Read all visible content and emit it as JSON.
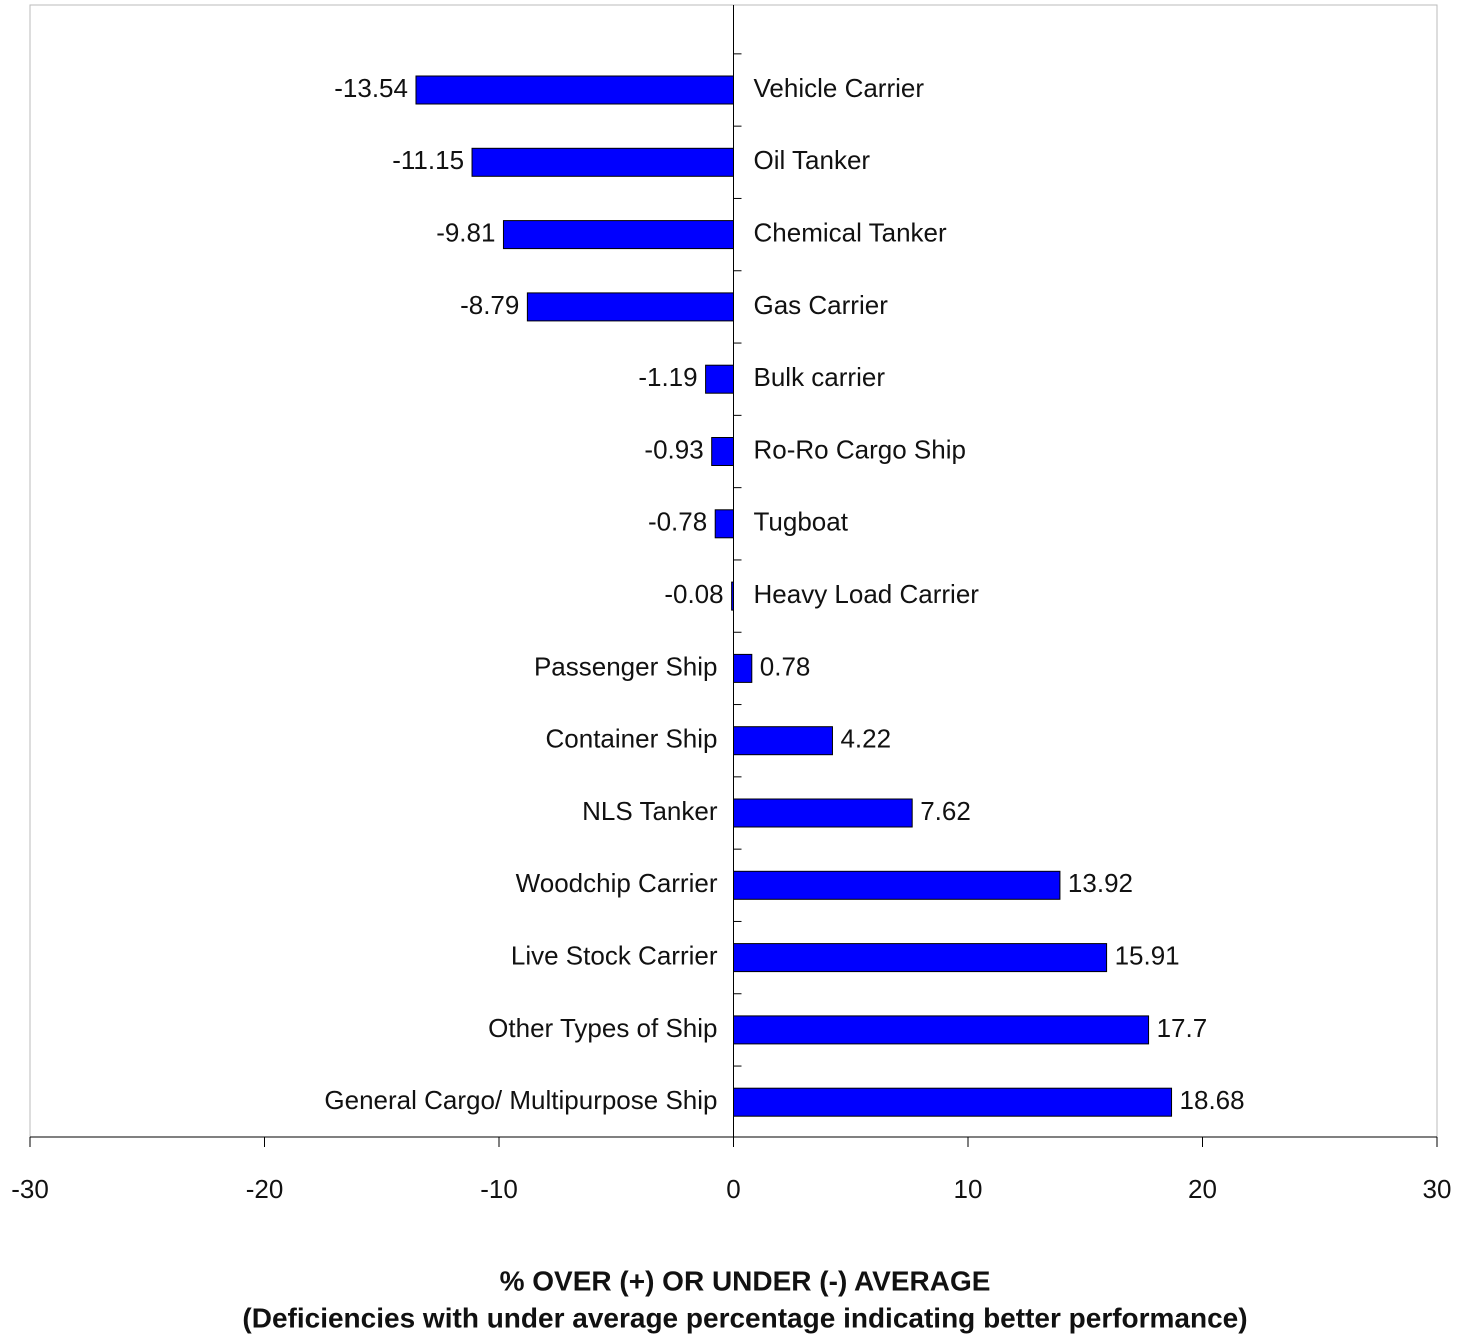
{
  "chart_data": {
    "type": "bar",
    "orientation": "horizontal",
    "categories": [
      "Vehicle Carrier",
      "Oil Tanker",
      "Chemical Tanker",
      "Gas Carrier",
      "Bulk carrier",
      "Ro-Ro Cargo Ship",
      "Tugboat",
      "Heavy Load Carrier",
      "Passenger Ship",
      "Container Ship",
      "NLS Tanker",
      "Woodchip Carrier",
      "Live Stock Carrier",
      "Other Types of Ship",
      "General Cargo/ Multipurpose Ship"
    ],
    "values": [
      -13.54,
      -11.15,
      -9.81,
      -8.79,
      -1.19,
      -0.93,
      -0.78,
      -0.08,
      0.78,
      4.22,
      7.62,
      13.92,
      15.91,
      17.7,
      18.68
    ],
    "color": "#0000ff",
    "xlim": [
      -30,
      30
    ],
    "xticks": [
      -30,
      -20,
      -10,
      0,
      10,
      20,
      30
    ],
    "xlabel_lines": [
      "% OVER (+) OR UNDER (-) AVERAGE",
      "(Deficiencies with under average percentage indicating better performance)"
    ],
    "grid": false
  }
}
